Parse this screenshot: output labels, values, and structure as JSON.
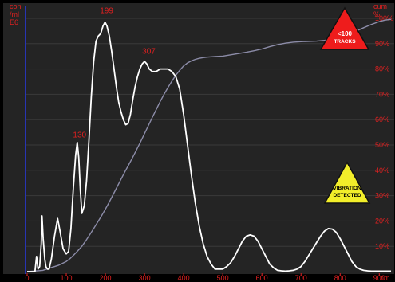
{
  "chart_data": {
    "type": "line",
    "colors": {
      "background": "#242424",
      "frame": "#000000",
      "labels": "#e02020",
      "gridlines": "#3a3a3a",
      "size_distribution": "#ffffff",
      "cumulative": "#8c8ca8",
      "left_axis": "#2a3cff"
    },
    "x_axis": {
      "min": 0,
      "max": 930,
      "ticks": [
        0,
        100,
        200,
        300,
        400,
        500,
        600,
        700,
        800,
        900
      ],
      "unit_label": "nm"
    },
    "left_axis": {
      "min": 0,
      "max": 1,
      "unit_lines": [
        "con",
        "/ml",
        "E6"
      ]
    },
    "right_axis": {
      "min": 0,
      "max": 100,
      "ticks": [
        "10%",
        "20%",
        "30%",
        "40%",
        "50%",
        "60%",
        "70%",
        "80%",
        "90%",
        "100%"
      ],
      "tick_values": [
        10,
        20,
        30,
        40,
        50,
        60,
        70,
        80,
        90,
        100
      ],
      "unit_lines": [
        "cum",
        "%"
      ]
    },
    "peak_labels": [
      {
        "text": "199",
        "x": 199,
        "y": 1.02
      },
      {
        "text": "307",
        "x": 307,
        "y": 0.86
      },
      {
        "text": "130",
        "x": 130,
        "y": 0.53
      }
    ],
    "series": [
      {
        "axis": "left",
        "x": [
          0,
          20,
          24,
          28,
          32,
          36,
          38,
          41,
          45,
          48,
          52,
          56,
          62,
          70,
          78,
          84,
          92,
          100,
          106,
          112,
          118,
          124,
          128,
          132,
          136,
          140,
          146,
          152,
          158,
          164,
          170,
          176,
          182,
          188,
          194,
          199,
          204,
          210,
          216,
          222,
          228,
          234,
          240,
          246,
          252,
          258,
          264,
          270,
          276,
          282,
          288,
          294,
          300,
          306,
          312,
          320,
          330,
          340,
          350,
          360,
          370,
          380,
          390,
          400,
          410,
          420,
          430,
          440,
          450,
          460,
          470,
          480,
          490,
          500,
          510,
          520,
          530,
          540,
          550,
          560,
          570,
          580,
          590,
          600,
          610,
          620,
          630,
          640,
          650,
          660,
          670,
          680,
          690,
          700,
          710,
          720,
          730,
          740,
          750,
          760,
          770,
          780,
          790,
          800,
          810,
          820,
          830,
          840,
          850,
          860,
          870,
          880,
          890,
          900,
          910,
          920,
          930
        ],
        "y": [
          0,
          0,
          0.06,
          0.01,
          0.02,
          0.11,
          0.22,
          0.13,
          0.05,
          0.02,
          0.01,
          0.01,
          0.05,
          0.14,
          0.21,
          0.16,
          0.09,
          0.07,
          0.08,
          0.17,
          0.33,
          0.46,
          0.51,
          0.45,
          0.32,
          0.23,
          0.26,
          0.36,
          0.52,
          0.69,
          0.83,
          0.91,
          0.93,
          0.94,
          0.97,
          0.985,
          0.97,
          0.93,
          0.87,
          0.8,
          0.73,
          0.67,
          0.63,
          0.6,
          0.58,
          0.585,
          0.62,
          0.68,
          0.73,
          0.77,
          0.8,
          0.82,
          0.83,
          0.82,
          0.8,
          0.79,
          0.79,
          0.8,
          0.8,
          0.8,
          0.79,
          0.77,
          0.72,
          0.62,
          0.5,
          0.38,
          0.27,
          0.18,
          0.11,
          0.06,
          0.03,
          0.01,
          0.01,
          0.01,
          0.02,
          0.035,
          0.06,
          0.09,
          0.12,
          0.14,
          0.145,
          0.14,
          0.12,
          0.09,
          0.06,
          0.03,
          0.015,
          0.005,
          0.003,
          0.002,
          0.003,
          0.005,
          0.01,
          0.02,
          0.04,
          0.065,
          0.09,
          0.115,
          0.14,
          0.16,
          0.17,
          0.168,
          0.155,
          0.13,
          0.1,
          0.07,
          0.04,
          0.02,
          0.01,
          0.005,
          0.003,
          0.002,
          0.002,
          0.002,
          0.002,
          0.002,
          0.002
        ]
      },
      {
        "axis": "right",
        "x": [
          0,
          40,
          60,
          80,
          100,
          110,
          120,
          130,
          140,
          150,
          160,
          170,
          180,
          190,
          200,
          210,
          220,
          230,
          240,
          250,
          260,
          270,
          280,
          290,
          300,
          310,
          320,
          330,
          340,
          350,
          360,
          370,
          380,
          390,
          400,
          410,
          420,
          430,
          440,
          450,
          460,
          470,
          480,
          490,
          500,
          520,
          540,
          560,
          580,
          600,
          620,
          640,
          660,
          680,
          700,
          720,
          740,
          760,
          780,
          800,
          820,
          840,
          860,
          880,
          900,
          915,
          930
        ],
        "y": [
          0,
          0.5,
          1.5,
          2.5,
          4.0,
          5.2,
          6.7,
          8.3,
          10,
          12.2,
          14.6,
          17,
          19.5,
          22,
          24.7,
          27.5,
          30.5,
          33.5,
          36.5,
          39.5,
          42.3,
          45.2,
          48.2,
          51.3,
          54.5,
          57.7,
          60.9,
          64,
          67.1,
          70,
          72.7,
          75.2,
          77.5,
          79.5,
          81.2,
          82.4,
          83.2,
          83.8,
          84.2,
          84.5,
          84.7,
          84.8,
          84.9,
          85.0,
          85.1,
          85.6,
          86.1,
          86.6,
          87.2,
          87.9,
          88.8,
          89.6,
          90.2,
          90.6,
          90.8,
          90.9,
          91.0,
          91.3,
          91.8,
          92.5,
          93.6,
          94.9,
          96.3,
          97.6,
          98.7,
          99.3,
          99.6
        ]
      }
    ],
    "warnings": [
      {
        "lines": [
          "<100",
          "TRACKS"
        ],
        "color": "#ee1c1c",
        "text_color": "#ffffff",
        "icon": "warning-triangle-icon"
      },
      {
        "lines": [
          "VIBRATION",
          "DETECTED"
        ],
        "color": "#f2ee2a",
        "text_color": "#000000",
        "icon": "warning-triangle-icon"
      }
    ]
  }
}
